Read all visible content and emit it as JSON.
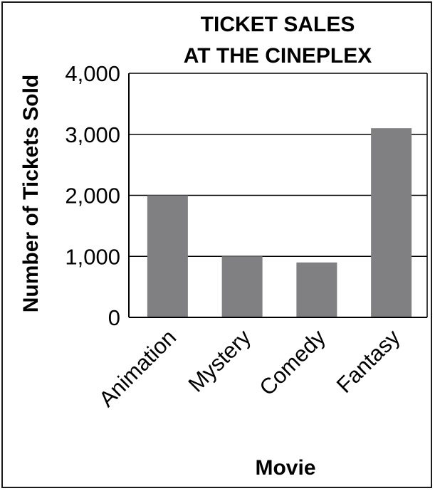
{
  "chart_data": {
    "type": "bar",
    "title_lines": [
      "TICKET SALES",
      "AT THE CINEPLEX"
    ],
    "xlabel": "Movie",
    "ylabel": "Number of Tickets Sold",
    "categories": [
      "Animation",
      "Mystery",
      "Comedy",
      "Fantasy"
    ],
    "values": [
      2000,
      1000,
      900,
      3100
    ],
    "ylim": [
      0,
      4000
    ],
    "yticks": [
      "0",
      "1,000",
      "2,000",
      "3,000",
      "4,000"
    ],
    "grid": true,
    "colors": {
      "bar": "#808083",
      "axis": "#000000",
      "grid": "#000000",
      "border": "#1a1a1a"
    }
  }
}
